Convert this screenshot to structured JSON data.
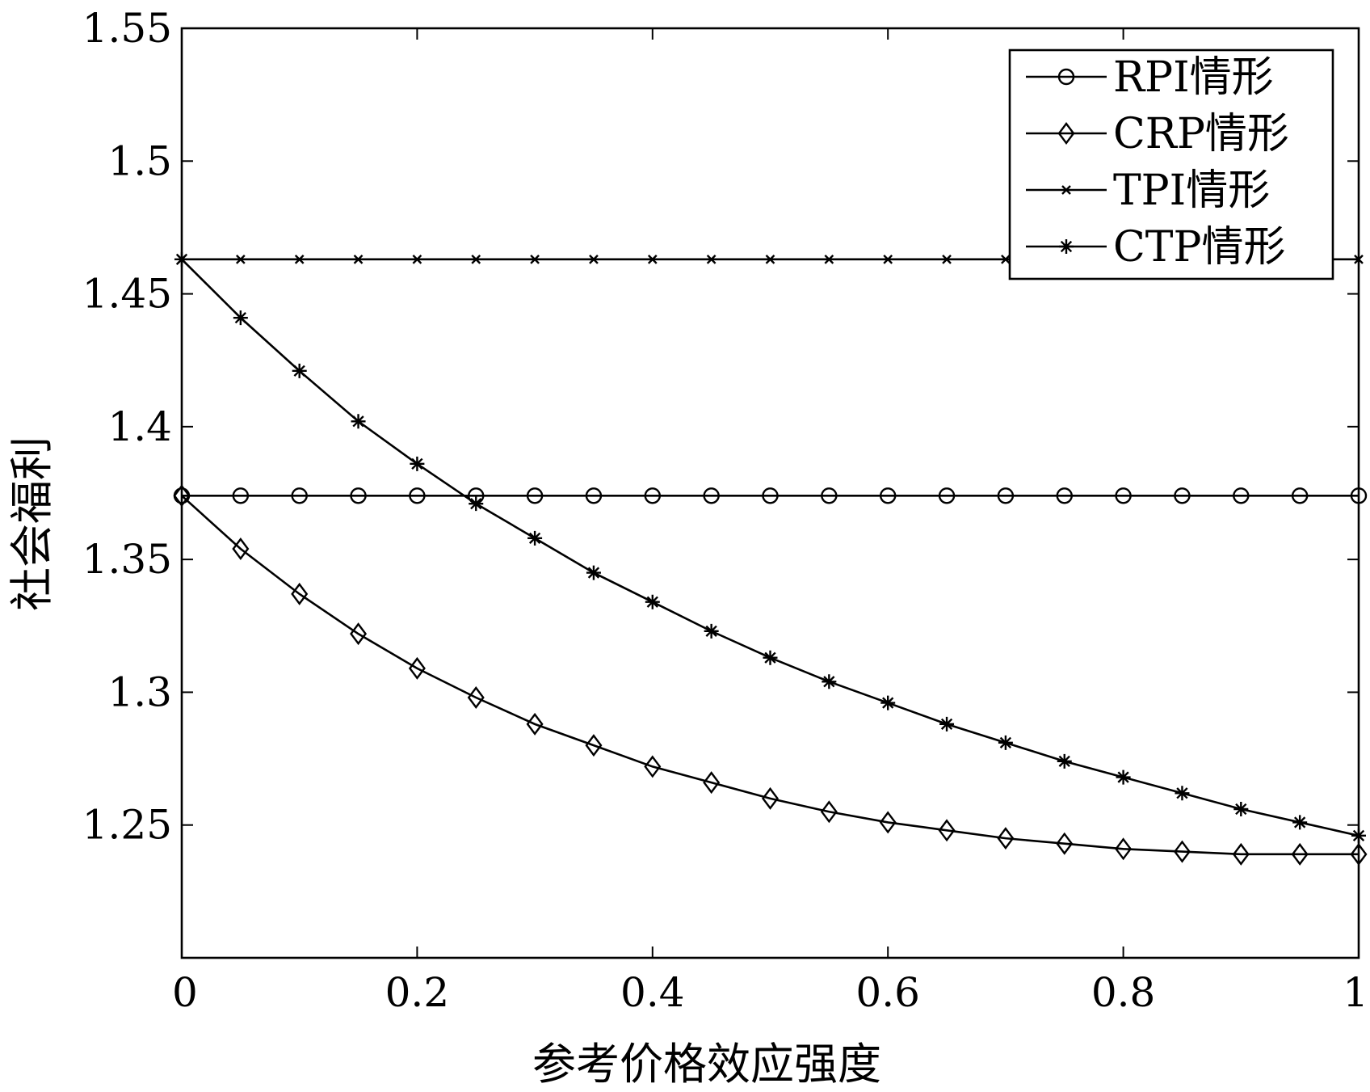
{
  "chart_data": {
    "type": "line",
    "xlabel": "参考价格效应强度",
    "ylabel": "社会福利",
    "xlim": [
      0,
      1
    ],
    "ylim": [
      1.2,
      1.55
    ],
    "xticks": [
      0,
      0.2,
      0.4,
      0.6,
      0.8,
      1
    ],
    "xtick_labels": [
      "0",
      "0.2",
      "0.4",
      "0.6",
      "0.8",
      "1"
    ],
    "yticks": [
      1.25,
      1.3,
      1.35,
      1.4,
      1.45,
      1.5,
      1.55
    ],
    "ytick_labels": [
      "1.25",
      "1.3",
      "1.35",
      "1.4",
      "1.45",
      "1.5",
      "1.55"
    ],
    "grid": false,
    "legend_position": "top-right",
    "x": [
      0,
      0.05,
      0.1,
      0.15,
      0.2,
      0.25,
      0.3,
      0.35,
      0.4,
      0.45,
      0.5,
      0.55,
      0.6,
      0.65,
      0.7,
      0.75,
      0.8,
      0.85,
      0.9,
      0.95,
      1
    ],
    "series": [
      {
        "name": "RPI情形",
        "marker": "circle",
        "values": [
          1.374,
          1.374,
          1.374,
          1.374,
          1.374,
          1.374,
          1.374,
          1.374,
          1.374,
          1.374,
          1.374,
          1.374,
          1.374,
          1.374,
          1.374,
          1.374,
          1.374,
          1.374,
          1.374,
          1.374,
          1.374
        ]
      },
      {
        "name": "CRP情形",
        "marker": "diamond",
        "values": [
          1.374,
          1.354,
          1.337,
          1.322,
          1.309,
          1.298,
          1.288,
          1.28,
          1.272,
          1.266,
          1.26,
          1.255,
          1.251,
          1.248,
          1.245,
          1.243,
          1.241,
          1.24,
          1.239,
          1.239,
          1.239
        ]
      },
      {
        "name": "TPI情形",
        "marker": "x",
        "values": [
          1.463,
          1.463,
          1.463,
          1.463,
          1.463,
          1.463,
          1.463,
          1.463,
          1.463,
          1.463,
          1.463,
          1.463,
          1.463,
          1.463,
          1.463,
          1.463,
          1.463,
          1.463,
          1.463,
          1.463,
          1.463
        ]
      },
      {
        "name": "CTP情形",
        "marker": "asterisk",
        "values": [
          1.463,
          1.441,
          1.421,
          1.402,
          1.386,
          1.371,
          1.358,
          1.345,
          1.334,
          1.323,
          1.313,
          1.304,
          1.296,
          1.288,
          1.281,
          1.274,
          1.268,
          1.262,
          1.256,
          1.251,
          1.246
        ]
      }
    ]
  }
}
